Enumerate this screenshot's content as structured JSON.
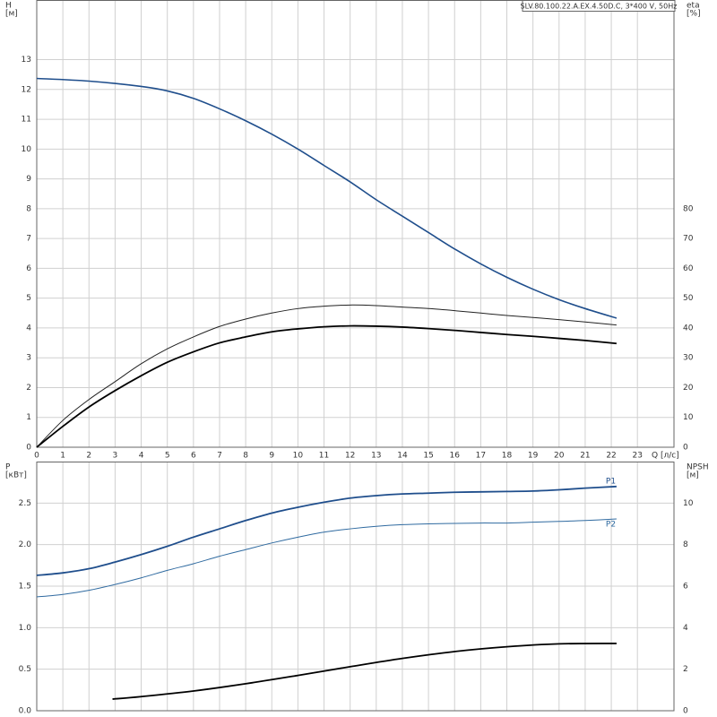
{
  "chart_data": [
    {
      "type": "line",
      "title": "SLV.80.100.22.A.EX.4.50D.C, 3*400 V, 50Hz",
      "y_label": "H",
      "y_unit": "[м]",
      "y2_label": "eta",
      "y2_unit": "[%]",
      "x_label": "Q [л/с]",
      "xlim": [
        0,
        24.4
      ],
      "xticks": [
        0,
        1,
        2,
        3,
        4,
        5,
        6,
        7,
        8,
        9,
        10,
        11,
        12,
        13,
        14,
        15,
        16,
        17,
        18,
        19,
        20,
        21,
        22,
        23
      ],
      "ylim": [
        0,
        15
      ],
      "yticks": [
        0,
        1,
        2,
        3,
        4,
        5,
        6,
        7,
        8,
        9,
        10,
        11,
        12,
        13
      ],
      "y2lim": [
        0,
        150
      ],
      "y2ticks": [
        0,
        10,
        20,
        30,
        40,
        50,
        60,
        70,
        80
      ],
      "grid": true,
      "series": [
        {
          "color": "#1f4e8c",
          "axis": "y",
          "x": [
            0,
            2,
            4,
            5,
            6,
            7,
            8,
            9,
            10,
            11,
            12,
            13,
            14,
            15,
            16,
            17,
            18,
            19,
            20,
            21,
            22.2
          ],
          "values": [
            12.37,
            12.28,
            12.1,
            11.95,
            11.7,
            11.35,
            10.95,
            10.5,
            10.0,
            9.45,
            8.9,
            8.3,
            7.75,
            7.2,
            6.65,
            6.15,
            5.7,
            5.3,
            4.95,
            4.65,
            4.33
          ]
        },
        {
          "color": "#222222",
          "axis": "y2",
          "x": [
            0,
            1,
            2,
            3,
            4,
            5,
            6,
            7,
            8,
            9,
            10,
            11,
            12,
            13,
            14,
            15,
            16,
            17,
            18,
            19,
            20,
            21,
            22.2
          ],
          "values": [
            0,
            9,
            16,
            22,
            28,
            33,
            37,
            40.5,
            43,
            45,
            46.5,
            47.3,
            47.7,
            47.5,
            47,
            46.5,
            45.8,
            45,
            44.2,
            43.5,
            42.8,
            42,
            41
          ]
        },
        {
          "color": "#000000",
          "axis": "y2",
          "x": [
            0,
            1,
            2,
            3,
            4,
            5,
            6,
            7,
            8,
            9,
            10,
            11,
            12,
            13,
            14,
            15,
            16,
            17,
            18,
            19,
            20,
            21,
            22.2
          ],
          "values": [
            0,
            7,
            13.5,
            19,
            24,
            28.5,
            32,
            35,
            37,
            38.7,
            39.7,
            40.4,
            40.7,
            40.6,
            40.3,
            39.8,
            39.2,
            38.5,
            37.8,
            37.2,
            36.5,
            35.8,
            34.8
          ]
        }
      ]
    },
    {
      "type": "line",
      "y_label": "P",
      "y_unit": "[кВт]",
      "y2_label": "NPSH",
      "y2_unit": "[м]",
      "xlim": [
        0,
        24.4
      ],
      "xticks": [
        0,
        1,
        2,
        3,
        4,
        5,
        6,
        7,
        8,
        9,
        10,
        11,
        12,
        13,
        14,
        15,
        16,
        17,
        18,
        19,
        20,
        21,
        22,
        23
      ],
      "ylim": [
        0,
        3.0
      ],
      "yticks": [
        {
          "value": 0,
          "label": "0.0"
        },
        0.5,
        {
          "value": 1,
          "label": "1.0"
        },
        1.5,
        {
          "value": 2,
          "label": "2.0"
        },
        2.5
      ],
      "y2lim": [
        0,
        12
      ],
      "y2ticks": [
        0,
        2,
        4,
        6,
        8,
        10
      ],
      "grid": true,
      "series": [
        {
          "name": "P1",
          "color": "#1f4e8c",
          "axis": "y",
          "x": [
            0,
            1,
            2,
            3,
            4,
            5,
            6,
            7,
            8,
            9,
            10,
            11,
            12,
            13,
            14,
            15,
            16,
            17,
            18,
            19,
            20,
            21,
            22.2
          ],
          "values": [
            1.63,
            1.66,
            1.71,
            1.79,
            1.88,
            1.98,
            2.09,
            2.19,
            2.29,
            2.38,
            2.45,
            2.51,
            2.56,
            2.59,
            2.61,
            2.62,
            2.63,
            2.635,
            2.64,
            2.645,
            2.66,
            2.68,
            2.7
          ]
        },
        {
          "name": "P2",
          "color": "#2f6aa0",
          "axis": "y",
          "x": [
            0,
            1,
            2,
            3,
            4,
            5,
            6,
            7,
            8,
            9,
            10,
            11,
            12,
            13,
            14,
            15,
            16,
            17,
            18,
            19,
            20,
            21,
            22.2
          ],
          "values": [
            1.37,
            1.4,
            1.45,
            1.52,
            1.6,
            1.69,
            1.77,
            1.86,
            1.94,
            2.02,
            2.09,
            2.15,
            2.19,
            2.22,
            2.24,
            2.25,
            2.255,
            2.26,
            2.26,
            2.27,
            2.28,
            2.29,
            2.31
          ]
        },
        {
          "color": "#000000",
          "axis": "y2",
          "x": [
            2.9,
            4,
            6,
            8,
            10,
            12,
            14,
            16,
            18,
            20,
            22.2
          ],
          "values": [
            0.56,
            0.68,
            0.95,
            1.3,
            1.7,
            2.12,
            2.52,
            2.85,
            3.08,
            3.22,
            3.24
          ]
        }
      ]
    }
  ]
}
